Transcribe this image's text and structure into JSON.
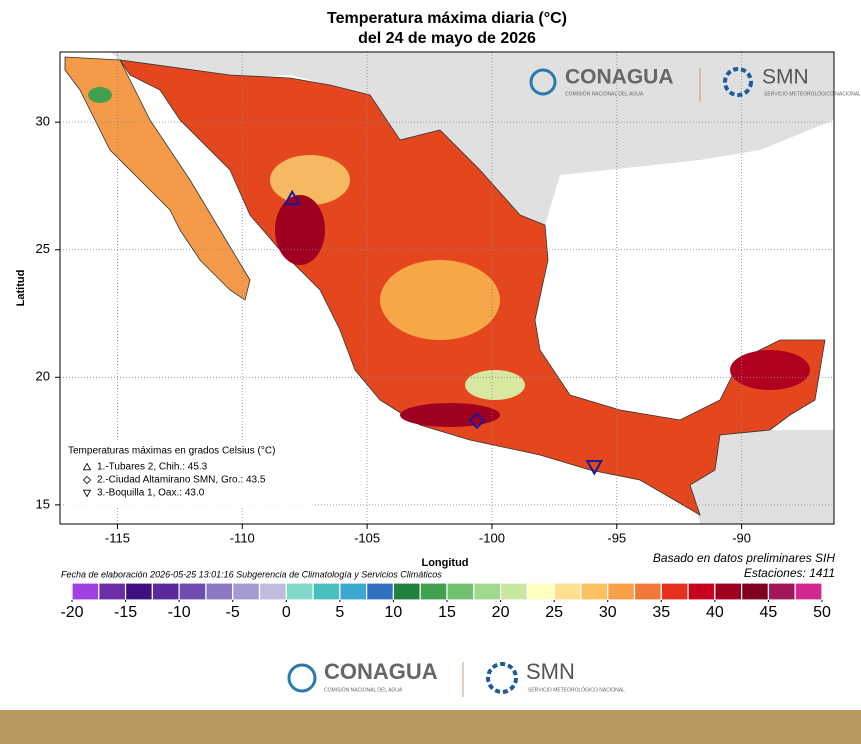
{
  "title": "Temperatura máxima diaria (°C)",
  "subtitle": "del 24 de mayo de 2026",
  "map": {
    "xlabel": "Longitud",
    "ylabel": "Latitud",
    "xlim": [
      -117.3,
      -86.3
    ],
    "ylim": [
      14.25,
      32.75
    ],
    "xticks": [
      -115,
      -110,
      -105,
      -100,
      -95,
      -90
    ],
    "yticks": [
      15,
      20,
      25,
      30
    ],
    "grid": true
  },
  "legend": {
    "title": "Temperaturas máximas en grados Celsius (°C)"
  },
  "stations": [
    {
      "label": "1.-Tubares 2, Chih.: 45.3",
      "symbol": "triangle-up",
      "lon": -108.0,
      "lat": 27.0
    },
    {
      "label": "2.-Ciudad Altamirano SMN, Gro.: 43.5",
      "symbol": "diamond",
      "lon": -100.6,
      "lat": 18.3
    },
    {
      "label": "3.-Boquilla 1, Oax.: 43.0",
      "symbol": "triangle-down",
      "lon": -95.9,
      "lat": 16.5
    }
  ],
  "note": "Basado en datos preliminares SIH",
  "stations_count": "Estaciones:  1411",
  "footer": "Fecha de elaboración 2026-05-25 13:01:16 Subgerencia de Climatología y Servicios Climáticos",
  "colorbar": {
    "ticks": [
      -20,
      -15,
      -10,
      -5,
      0,
      5,
      10,
      15,
      20,
      25,
      30,
      35,
      40,
      45,
      50
    ],
    "colors": [
      "#a040e0",
      "#6a2fa8",
      "#3d0f80",
      "#5a2a9a",
      "#6e4cb0",
      "#8a78c0",
      "#a49cd0",
      "#c0bce0",
      "#80d8c8",
      "#48c0c0",
      "#3aa8d0",
      "#3070c0",
      "#208040",
      "#40a050",
      "#70c070",
      "#a0d890",
      "#c8e8a0",
      "#ffffc0",
      "#ffe090",
      "#fcc060",
      "#f8a048",
      "#f07838",
      "#e83020",
      "#c80020",
      "#a00020",
      "#800020",
      "#a01858",
      "#d02890"
    ]
  },
  "logos": {
    "conagua": "CONAGUA",
    "conagua_sub": "COMISIÓN NACIONAL DEL AGUA",
    "smn": "SMN",
    "smn_sub": "SERVICIO METEOROLÓGICO NACIONAL"
  }
}
